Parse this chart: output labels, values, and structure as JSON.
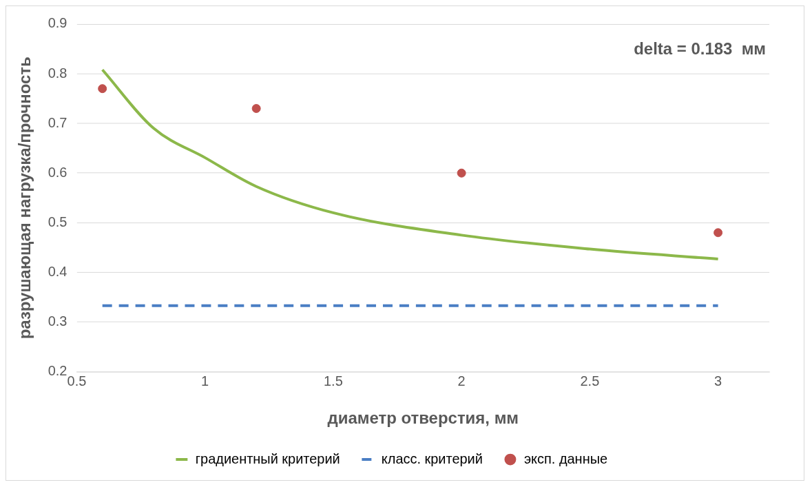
{
  "chart_data": {
    "type": "line",
    "xlabel": "диаметр отверстия, мм",
    "ylabel": "разрушающая нагрузка/прочность",
    "xlim": [
      0.5,
      3.2
    ],
    "xticks": [
      0.5,
      1,
      1.5,
      2,
      2.5,
      3
    ],
    "ylim": [
      0.2,
      0.9
    ],
    "yticks": [
      0.2,
      0.3,
      0.4,
      0.5,
      0.6,
      0.7,
      0.8,
      0.9
    ],
    "grid": "y",
    "legend": "bottom",
    "annotations": [
      "delta = 0.183  мм"
    ],
    "series": [
      {
        "name": "градиентный критерий",
        "type": "line",
        "color": "#8cb84a",
        "line_style": "solid",
        "marker": "none",
        "x": [
          0.6,
          0.8,
          1,
          1.2,
          1.5,
          2,
          2.5,
          3
        ],
        "values": [
          0.808,
          0.69,
          0.631,
          0.573,
          0.52,
          0.475,
          0.447,
          0.427
        ]
      },
      {
        "name": "класс. критерий",
        "type": "line",
        "color": "#4a7ec4",
        "line_style": "dashed",
        "marker": "none",
        "x": [
          0.6,
          3
        ],
        "values": [
          0.333,
          0.333
        ]
      },
      {
        "name": "эксп. данные",
        "type": "scatter",
        "color": "#c0504d",
        "marker": "circle",
        "x": [
          0.6,
          1.2,
          2,
          3
        ],
        "values": [
          0.77,
          0.73,
          0.6,
          0.48
        ]
      }
    ]
  }
}
